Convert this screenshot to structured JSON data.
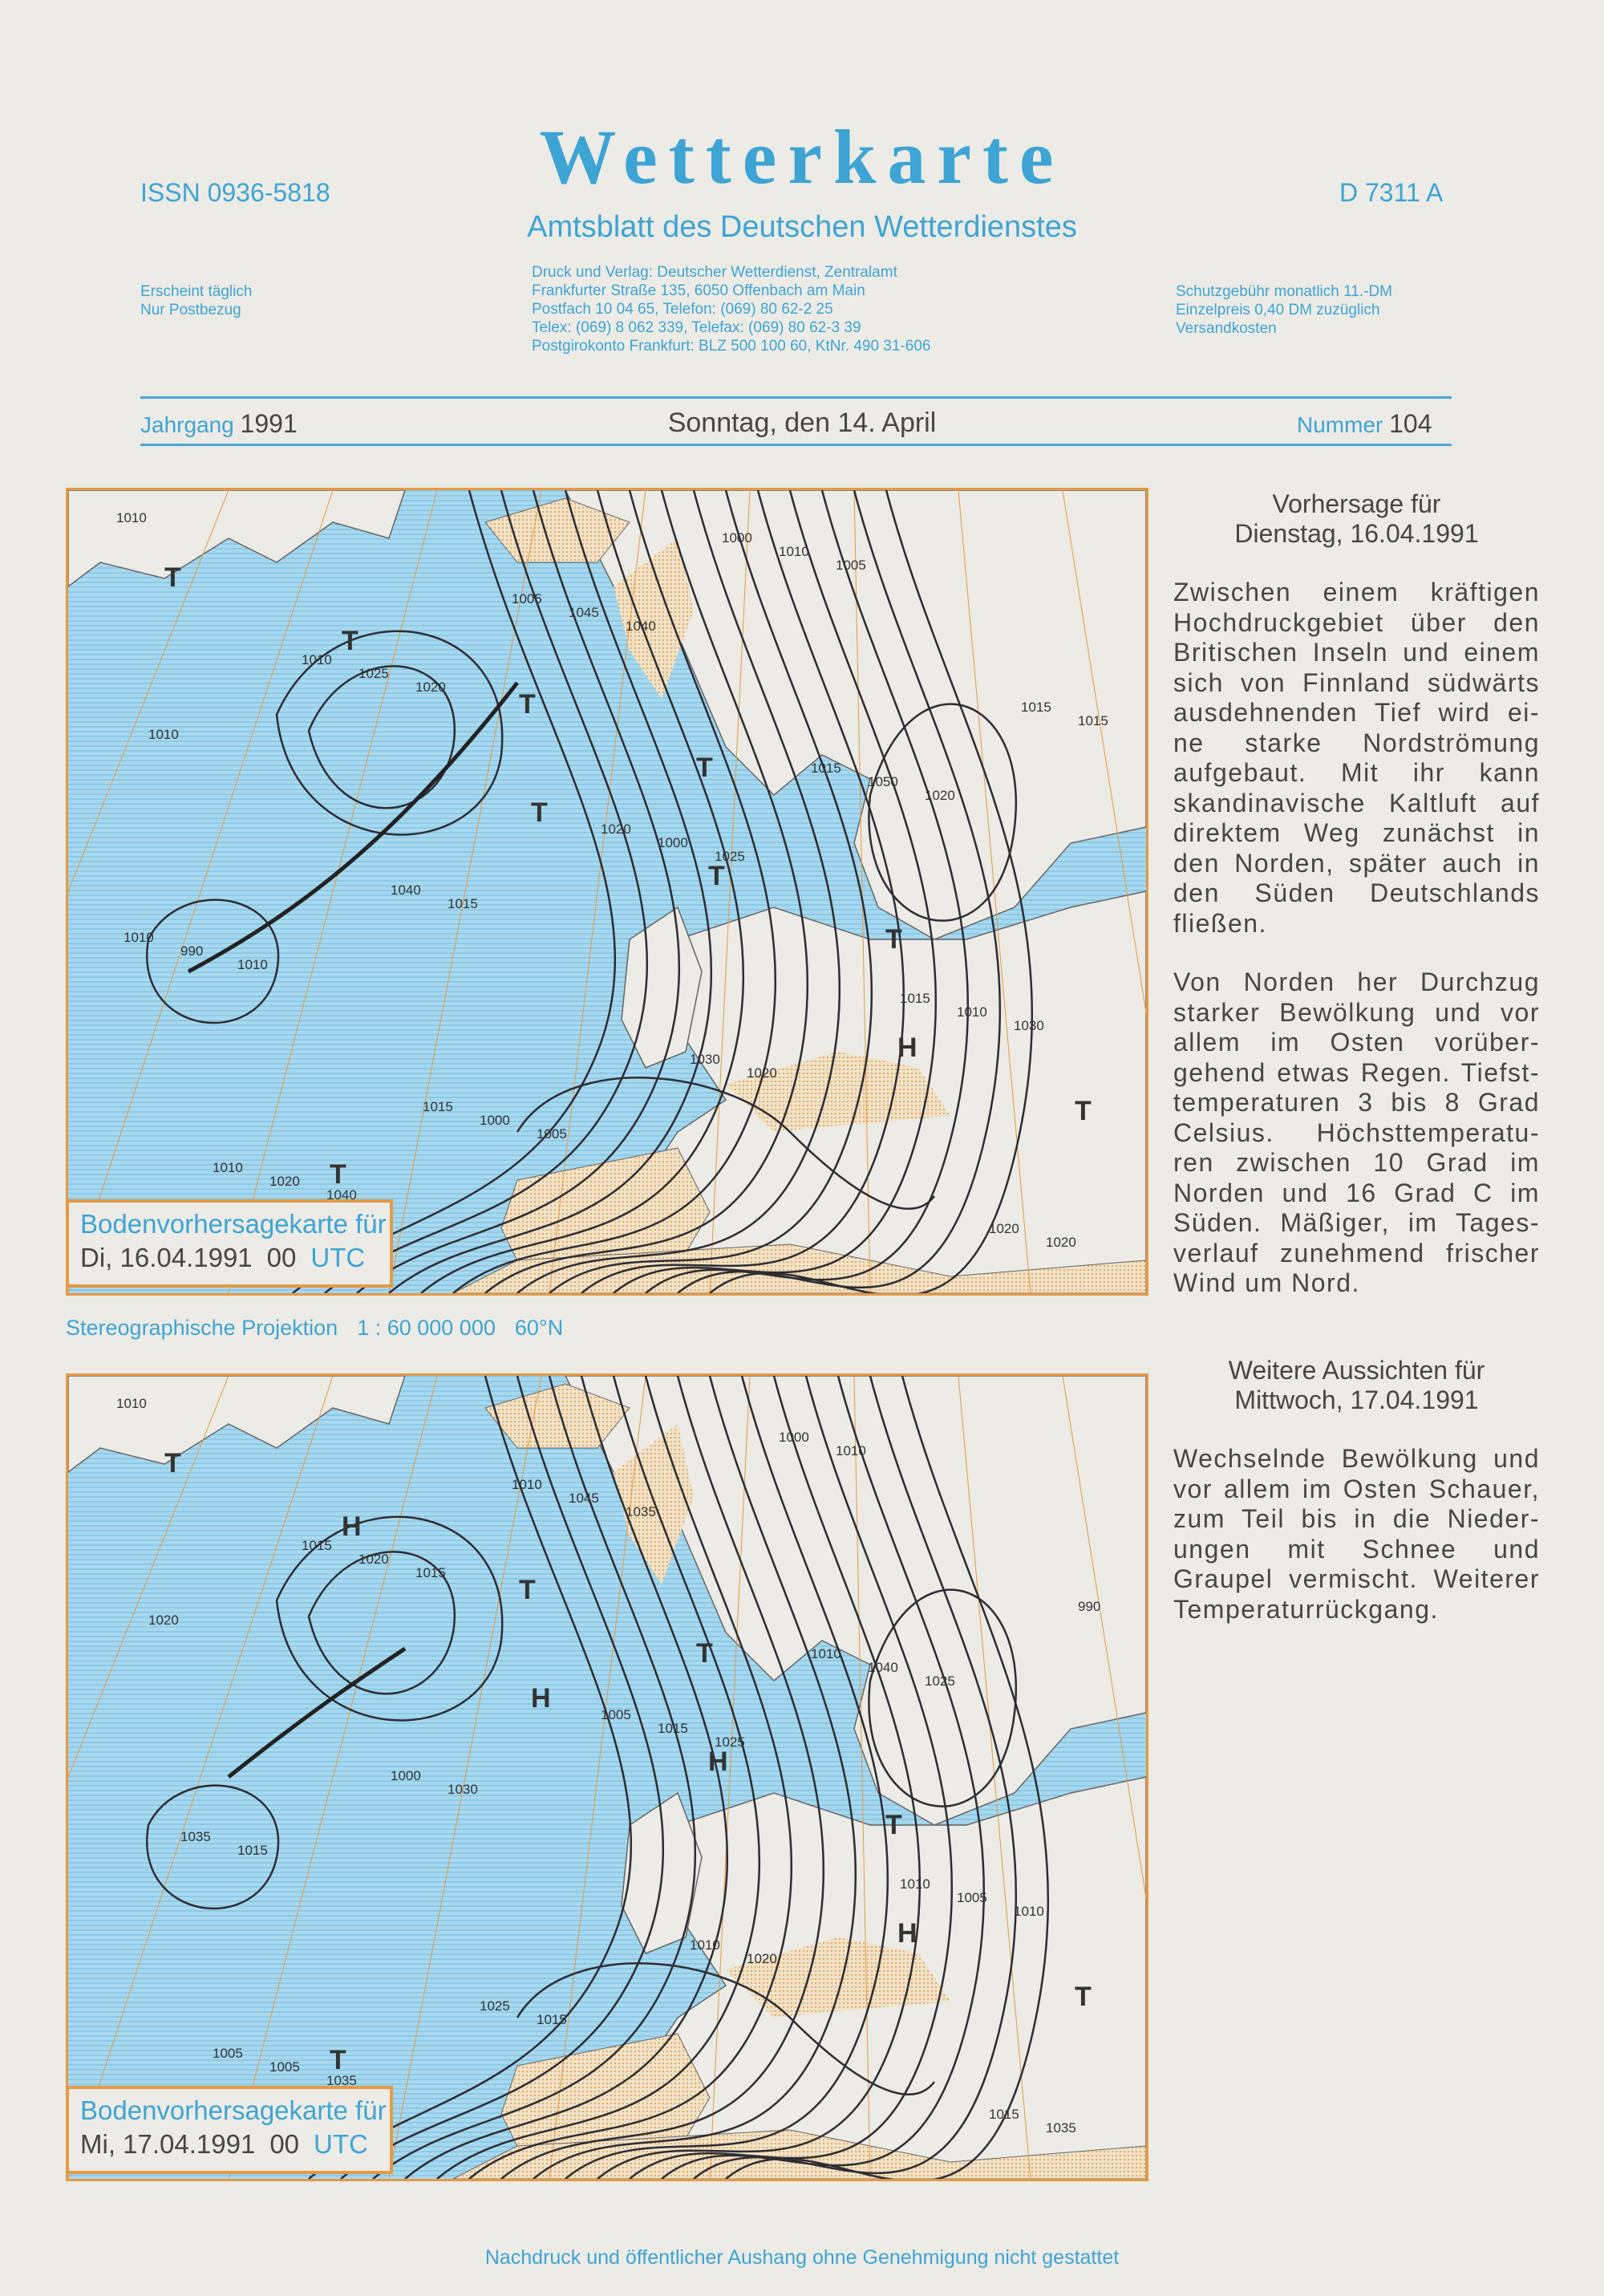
{
  "header": {
    "title": "Wetterkarte",
    "subtitle": "Amtsblatt des Deutschen Wetterdienstes",
    "issn": "ISSN 0936-5818",
    "d_number": "D 7311 A",
    "left_info": [
      "Erscheint täglich",
      "Nur Postbezug"
    ],
    "center_info": [
      "Druck und Verlag: Deutscher Wetterdienst, Zentralamt",
      "Frankfurter Straße 135, 6050 Offenbach am Main",
      "Postfach  10 04 65,  Telefon: (069)  80 62-2 25",
      "Telex: (069)  8 062 339,  Telefax: (069)  80 62-3 39",
      "Postgirokonto Frankfurt: BLZ  500 100 60,  KtNr.  490 31-606"
    ],
    "right_info": [
      "Schutzgebühr monatlich 11.-DM",
      "Einzelpreis  0,40 DM zuzüglich",
      "Versandkosten"
    ]
  },
  "issue": {
    "jahrgang_label": "Jahrgang",
    "jahrgang": "1991",
    "date": "Sonntag, den 14. April",
    "nummer_label": "Nummer",
    "nummer": "104"
  },
  "map1": {
    "caption_title": "Bodenvorhersagekarte für",
    "caption_date": "Di, 16.04.1991",
    "caption_hour": "00",
    "caption_utc": "UTC",
    "labels": [
      "1010",
      "1020",
      "1025",
      "1030",
      "1040",
      "1040",
      "1020",
      "1010",
      "1005",
      "1005",
      "1010",
      "1015",
      "1020",
      "1020",
      "1025",
      "1000",
      "1010",
      "1020",
      "1045",
      "1050",
      "990",
      "1000",
      "1010",
      "1015",
      "1040",
      "1030",
      "1020",
      "1010",
      "1020",
      "1015",
      "1010",
      "1005",
      "1015",
      "1010",
      "1015",
      "1000",
      "1015"
    ],
    "centers": [
      "T",
      "T",
      "H",
      "T",
      "T",
      "T",
      "T",
      "T",
      "T",
      "T"
    ]
  },
  "projection": {
    "name": "Stereographische Projektion",
    "scale": "1 : 60 000 000",
    "latitude": "60°N"
  },
  "map2": {
    "caption_title": "Bodenvorhersagekarte für",
    "caption_date": "Mi, 17.04.1991",
    "caption_hour": "00",
    "caption_utc": "UTC",
    "labels": [
      "1010",
      "1015",
      "1025",
      "1010",
      "1035",
      "1035",
      "1025",
      "1015",
      "1015",
      "1010",
      "1020",
      "1030",
      "1020",
      "1035",
      "1020",
      "1015",
      "1005",
      "1005",
      "1045",
      "1040",
      "1035",
      "1025",
      "1000",
      "990",
      "1000",
      "1010",
      "1015",
      "1015",
      "1005",
      "1010",
      "1005",
      "1010",
      "1010"
    ],
    "centers": [
      "T",
      "H",
      "H",
      "H",
      "H",
      "T",
      "T",
      "T",
      "T",
      "T"
    ]
  },
  "forecast1": {
    "heading": [
      "Vorhersage für",
      "Dienstag, 16.04.1991"
    ],
    "para1": [
      "Zwischen einem kräftigen",
      "Hochdruckgebiet über den",
      "Britischen Inseln und einem",
      "sich von Finnland südwärts",
      "ausdehnenden Tief wird ei-",
      "ne starke Nordströmung",
      "aufgebaut. Mit ihr kann",
      "skandinavische Kaltluft auf",
      "direktem Weg zunächst in",
      "den Norden, später auch in",
      "den Süden Deutschlands",
      "fließen."
    ],
    "para2": [
      "Von Norden her Durchzug",
      "starker Bewölkung und vor",
      "allem im Osten vorüber-",
      "gehend etwas Regen. Tiefst-",
      "temperaturen 3 bis 8 Grad",
      "Celsius. Höchsttemperatu-",
      "ren zwischen 10 Grad im",
      "Norden und 16 Grad C im",
      "Süden. Mäßiger, im Tages-",
      "verlauf zunehmend frischer",
      "Wind um Nord."
    ]
  },
  "forecast2": {
    "heading": [
      "Weitere Aussichten für",
      "Mittwoch, 17.04.1991"
    ],
    "para1": [
      "Wechselnde Bewölkung und",
      "vor allem im Osten Schauer,",
      "zum Teil bis in die Nieder-",
      "ungen mit Schnee und",
      "Graupel vermischt. Weiterer",
      "Temperaturrückgang."
    ]
  },
  "footer": "Nachdruck und öffentlicher Aushang ohne Genehmigung nicht gestattet",
  "colors": {
    "accent_blue": "#3da4d4",
    "map_orange": "#e49a45",
    "sea": "#9fd4ec",
    "text": "#4a4444"
  }
}
